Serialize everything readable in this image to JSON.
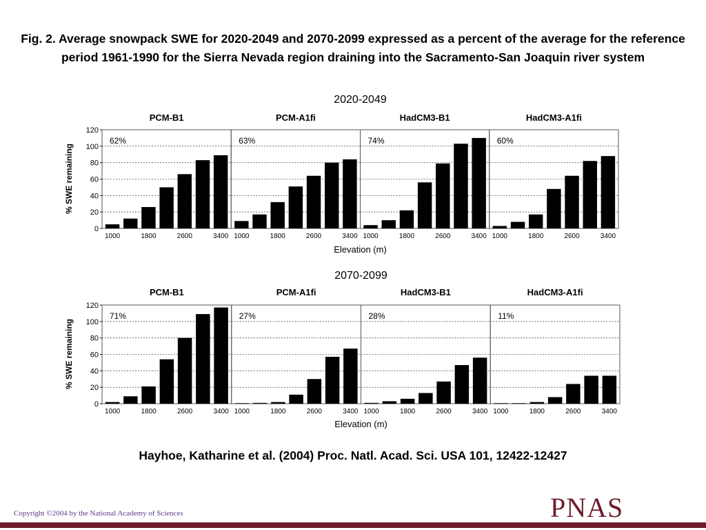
{
  "page": {
    "title": "Fig. 2. Average snowpack SWE for 2020-2049 and 2070-2099 expressed as a percent of the average for the reference period 1961-1990 for the Sierra Nevada region draining into the Sacramento-San Joaquin river system",
    "citation": "Hayhoe, Katharine et al. (2004) Proc. Natl. Acad. Sci. USA 101, 12422-12427",
    "copyright": "Copyright ©2004 by the National Academy of Sciences",
    "logo": "PNAS",
    "colors": {
      "bars": "#000000",
      "logo": "#6e1c2b",
      "copyright": "#5a3a8a"
    }
  },
  "chart_data": [
    {
      "type": "bar",
      "title": "2020-2049",
      "xlabel": "Elevation (m)",
      "ylabel": "% SWE remaining",
      "ylim": [
        0,
        120
      ],
      "yticks": [
        0,
        20,
        40,
        60,
        80,
        100,
        120
      ],
      "xtick_labels": [
        "1000",
        "1800",
        "2600",
        "3400"
      ],
      "grid": "dashed horizontal",
      "categories": [
        "1000",
        "1400",
        "1800",
        "2200",
        "2600",
        "3000",
        "3400"
      ],
      "panels": [
        {
          "name": "PCM-B1",
          "annotation": "62%",
          "values": [
            5,
            12,
            26,
            50,
            66,
            83,
            89
          ]
        },
        {
          "name": "PCM-A1fi",
          "annotation": "63%",
          "values": [
            9,
            17,
            32,
            51,
            64,
            80,
            84
          ]
        },
        {
          "name": "HadCM3-B1",
          "annotation": "74%",
          "values": [
            4,
            10,
            22,
            56,
            79,
            103,
            110
          ]
        },
        {
          "name": "HadCM3-A1fi",
          "annotation": "60%",
          "values": [
            3,
            8,
            17,
            48,
            64,
            82,
            88
          ]
        }
      ]
    },
    {
      "type": "bar",
      "title": "2070-2099",
      "xlabel": "Elevation (m)",
      "ylabel": "% SWE remaining",
      "ylim": [
        0,
        120
      ],
      "yticks": [
        0,
        20,
        40,
        60,
        80,
        100,
        120
      ],
      "xtick_labels": [
        "1000",
        "1800",
        "2600",
        "3400"
      ],
      "grid": "dashed horizontal",
      "categories": [
        "1000",
        "1400",
        "1800",
        "2200",
        "2600",
        "3000",
        "3400"
      ],
      "panels": [
        {
          "name": "PCM-B1",
          "annotation": "71%",
          "values": [
            2,
            9,
            21,
            54,
            80,
            109,
            117
          ]
        },
        {
          "name": "PCM-A1fi",
          "annotation": "27%",
          "values": [
            0,
            1,
            2,
            11,
            30,
            57,
            67
          ]
        },
        {
          "name": "HadCM3-B1",
          "annotation": "28%",
          "values": [
            1,
            3,
            6,
            13,
            27,
            47,
            56
          ]
        },
        {
          "name": "HadCM3-A1fi",
          "annotation": "11%",
          "values": [
            0,
            0,
            2,
            8,
            24,
            34,
            34
          ]
        }
      ]
    }
  ]
}
